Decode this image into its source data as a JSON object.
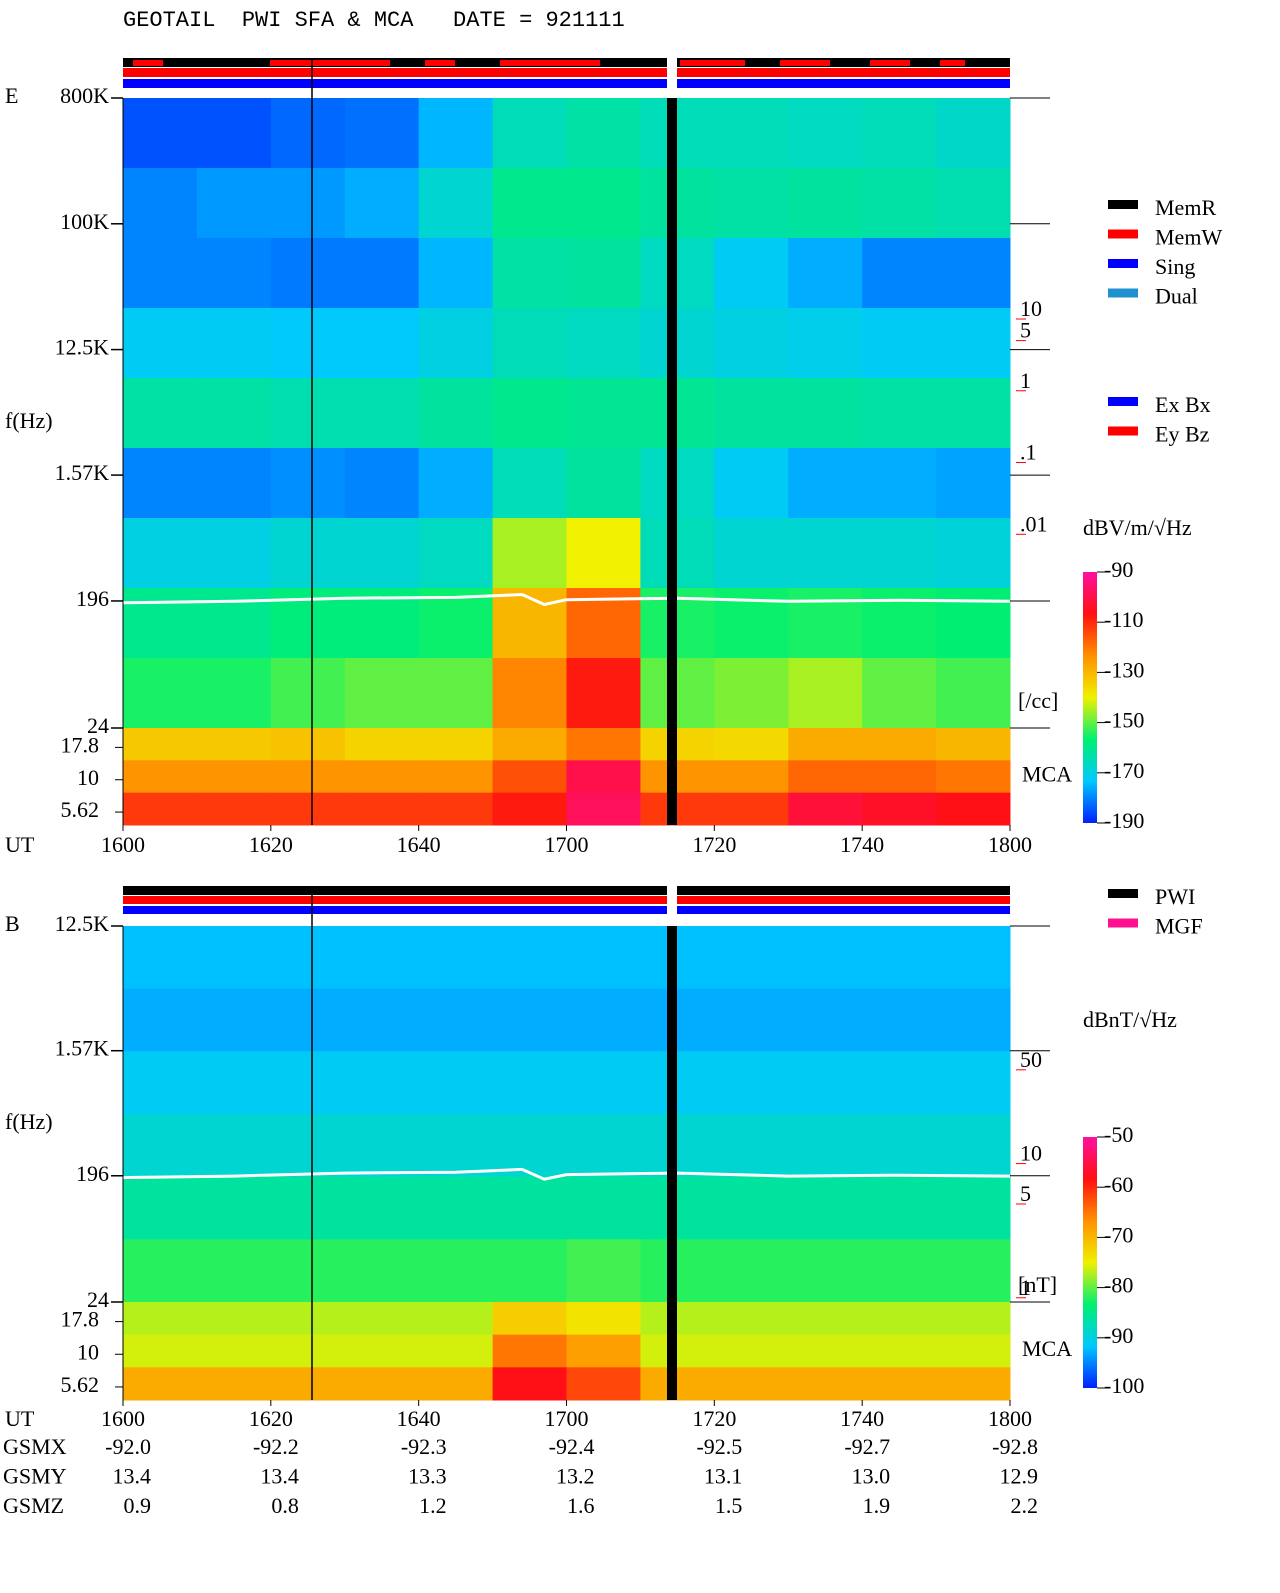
{
  "title": "GEOTAIL  PWI SFA & MCA   DATE = 921111",
  "chart_data": [
    {
      "type": "spectrogram",
      "panel_label": "E",
      "ylabel": "f(Hz)",
      "xlabel": "UT",
      "log_y": true,
      "ylim": [
        24,
        800000
      ],
      "yticks": [
        {
          "value": 800000,
          "label": "800K"
        },
        {
          "value": 100000,
          "label": "100K"
        },
        {
          "value": 12500,
          "label": "12.5K"
        },
        {
          "value": 1570,
          "label": "1.57K"
        },
        196,
        24
      ],
      "mca_label": "MCA",
      "mca_channels": [
        17.8,
        10,
        5.62
      ],
      "xlim": [
        16,
        18
      ],
      "xticks": [
        {
          "value": 16,
          "label": "1600"
        },
        {
          "value": 16.3333,
          "label": "1620"
        },
        {
          "value": 16.6667,
          "label": "1640"
        },
        {
          "value": 17,
          "label": "1700"
        },
        {
          "value": 17.3333,
          "label": "1720"
        },
        {
          "value": 17.6667,
          "label": "1740"
        },
        {
          "value": 18,
          "label": "1800"
        }
      ],
      "z": [
        [
          -185,
          -185,
          -183,
          -182,
          -175,
          -165,
          -163,
          -165,
          -165,
          -166,
          -165,
          -167
        ],
        [
          -180,
          -178,
          -178,
          -176,
          -168,
          -160,
          -160,
          -162,
          -163,
          -162,
          -163,
          -164
        ],
        [
          -180,
          -180,
          -181,
          -181,
          -175,
          -163,
          -162,
          -166,
          -172,
          -176,
          -180,
          -180
        ],
        [
          -172,
          -172,
          -173,
          -173,
          -170,
          -165,
          -166,
          -168,
          -170,
          -171,
          -172,
          -172
        ],
        [
          -163,
          -163,
          -164,
          -164,
          -162,
          -160,
          -161,
          -161,
          -162,
          -162,
          -163,
          -163
        ],
        [
          -180,
          -180,
          -179,
          -180,
          -176,
          -165,
          -162,
          -166,
          -172,
          -176,
          -176,
          -177
        ],
        [
          -170,
          -170,
          -168,
          -168,
          -166,
          -145,
          -140,
          -165,
          -168,
          -168,
          -168,
          -169
        ],
        [
          -160,
          -160,
          -158,
          -158,
          -156,
          -130,
          -118,
          -155,
          -156,
          -155,
          -156,
          -157
        ],
        [
          -155,
          -155,
          -152,
          -150,
          -150,
          -122,
          -108,
          -150,
          -148,
          -145,
          -150,
          -152
        ]
      ],
      "mca_z": [
        [
          -133,
          -133,
          -132,
          -135,
          -135,
          -128,
          -120,
          -135,
          -136,
          -128,
          -128,
          -130
        ],
        [
          -124,
          -124,
          -124,
          -124,
          -124,
          -115,
          -100,
          -124,
          -124,
          -118,
          -118,
          -120
        ],
        [
          -112,
          -112,
          -112,
          -112,
          -112,
          -108,
          -98,
          -112,
          -112,
          -102,
          -104,
          -106
        ]
      ],
      "zlim": [
        -190,
        -90
      ],
      "zticks": [
        -90,
        -110,
        -130,
        -150,
        -170,
        -190
      ],
      "zlabel": "dBV/m/√Hz",
      "colormap": [
        "#0020ff",
        "#00c8ff",
        "#00f070",
        "#f0f000",
        "#ff9000",
        "#ff1010",
        "#ff10a0"
      ],
      "y2lim": [
        2e-05,
        12000
      ],
      "y2ticks": [
        10,
        5,
        1,
        {
          "value": 0.1,
          "label": ".1"
        },
        {
          "value": 0.01,
          "label": ".01"
        }
      ],
      "y2label": "[/cc]",
      "y2color": "#ff0000",
      "trace": {
        "x": [
          16,
          16.25,
          16.5,
          16.75,
          16.9,
          16.95,
          17,
          17.25,
          17.5,
          17.75,
          18
        ],
        "values": [
          190,
          195,
          205,
          208,
          218,
          185,
          200,
          205,
          195,
          198,
          195
        ],
        "color": "#ffffff"
      },
      "legend": [
        {
          "name": "MemR",
          "color": "#000000"
        },
        {
          "name": "MemW",
          "color": "#ff0000"
        },
        {
          "name": "Sing",
          "color": "#0000ff"
        },
        {
          "name": "Dual",
          "color": "#2090d0"
        }
      ],
      "legend2": [
        {
          "name": "Ex Bx",
          "color": "#0000ff"
        },
        {
          "name": "Ey Bz",
          "color": "#ff0000"
        }
      ]
    },
    {
      "type": "spectrogram",
      "panel_label": "B",
      "ylabel": "f(Hz)",
      "xlabel": "UT",
      "log_y": true,
      "ylim": [
        24,
        12500
      ],
      "yticks": [
        {
          "value": 12500,
          "label": "12.5K"
        },
        {
          "value": 1570,
          "label": "1.57K"
        },
        196,
        24
      ],
      "mca_label": "MCA",
      "mca_channels": [
        17.8,
        10,
        5.62
      ],
      "xlim": [
        16,
        18
      ],
      "xticks": [
        {
          "value": 16,
          "label": "1600"
        },
        {
          "value": 16.3333,
          "label": "1620"
        },
        {
          "value": 16.6667,
          "label": "1640"
        },
        {
          "value": 17,
          "label": "1700"
        },
        {
          "value": 17.3333,
          "label": "1720"
        },
        {
          "value": 17.6667,
          "label": "1740"
        },
        {
          "value": 18,
          "label": "1800"
        }
      ],
      "z": [
        [
          -92,
          -92,
          -92,
          -92,
          -92,
          -92,
          -92,
          -92,
          -92,
          -92,
          -92,
          -92
        ],
        [
          -93,
          -93,
          -93,
          -93,
          -93,
          -93,
          -93,
          -93,
          -93,
          -93,
          -93,
          -93
        ],
        [
          -91,
          -91,
          -91,
          -91,
          -91,
          -91,
          -91,
          -91,
          -91,
          -91,
          -91,
          -91
        ],
        [
          -89,
          -89,
          -89,
          -89,
          -89,
          -89,
          -89,
          -89,
          -89,
          -89,
          -89,
          -89
        ],
        [
          -86,
          -86,
          -86,
          -86,
          -86,
          -86,
          -86,
          -86,
          -86,
          -86,
          -86,
          -86
        ],
        [
          -82,
          -82,
          -82,
          -82,
          -82,
          -82,
          -81,
          -82,
          -82,
          -82,
          -82,
          -82
        ]
      ],
      "mca_z": [
        [
          -77,
          -77,
          -77,
          -77,
          -77,
          -72,
          -74,
          -77,
          -77,
          -77,
          -77,
          -77
        ],
        [
          -76,
          -76,
          -76,
          -76,
          -76,
          -65,
          -68,
          -76,
          -76,
          -76,
          -76,
          -76
        ],
        [
          -69,
          -69,
          -69,
          -69,
          -69,
          -58,
          -62,
          -69,
          -69,
          -69,
          -69,
          -69
        ]
      ],
      "zlim": [
        -100,
        -50
      ],
      "zticks": [
        -50,
        -60,
        -70,
        -80,
        -90,
        -100
      ],
      "zlabel": "dBnT/√Hz",
      "colormap": [
        "#0020ff",
        "#00c8ff",
        "#00f070",
        "#f0f000",
        "#ff9000",
        "#ff1010",
        "#ff10a0"
      ],
      "y2lim": [
        0.93,
        590
      ],
      "y2ticks": [
        50,
        10,
        5,
        1
      ],
      "y2label": "[nT]",
      "y2color": "#ff0000",
      "trace": {
        "x": [
          16,
          16.25,
          16.5,
          16.75,
          16.9,
          16.95,
          17,
          17.25,
          17.5,
          17.75,
          18
        ],
        "values": [
          190,
          195,
          205,
          208,
          218,
          185,
          200,
          205,
          195,
          198,
          195
        ],
        "color": "#ffffff"
      },
      "legend": [
        {
          "name": "PWI",
          "color": "#000000"
        },
        {
          "name": "MGF",
          "color": "#ff1090"
        }
      ]
    }
  ],
  "orbit": {
    "labels": [
      "GSMX",
      "GSMY",
      "GSMZ"
    ],
    "rows": [
      [
        "-92.0",
        "-92.2",
        "-92.3",
        "-92.4",
        "-92.5",
        "-92.7",
        "-92.8"
      ],
      [
        "13.4",
        "13.4",
        "13.3",
        "13.2",
        "13.1",
        "13.0",
        "12.9"
      ],
      [
        "0.9",
        "0.8",
        "1.2",
        "1.6",
        "1.5",
        "1.9",
        "2.2"
      ]
    ]
  }
}
